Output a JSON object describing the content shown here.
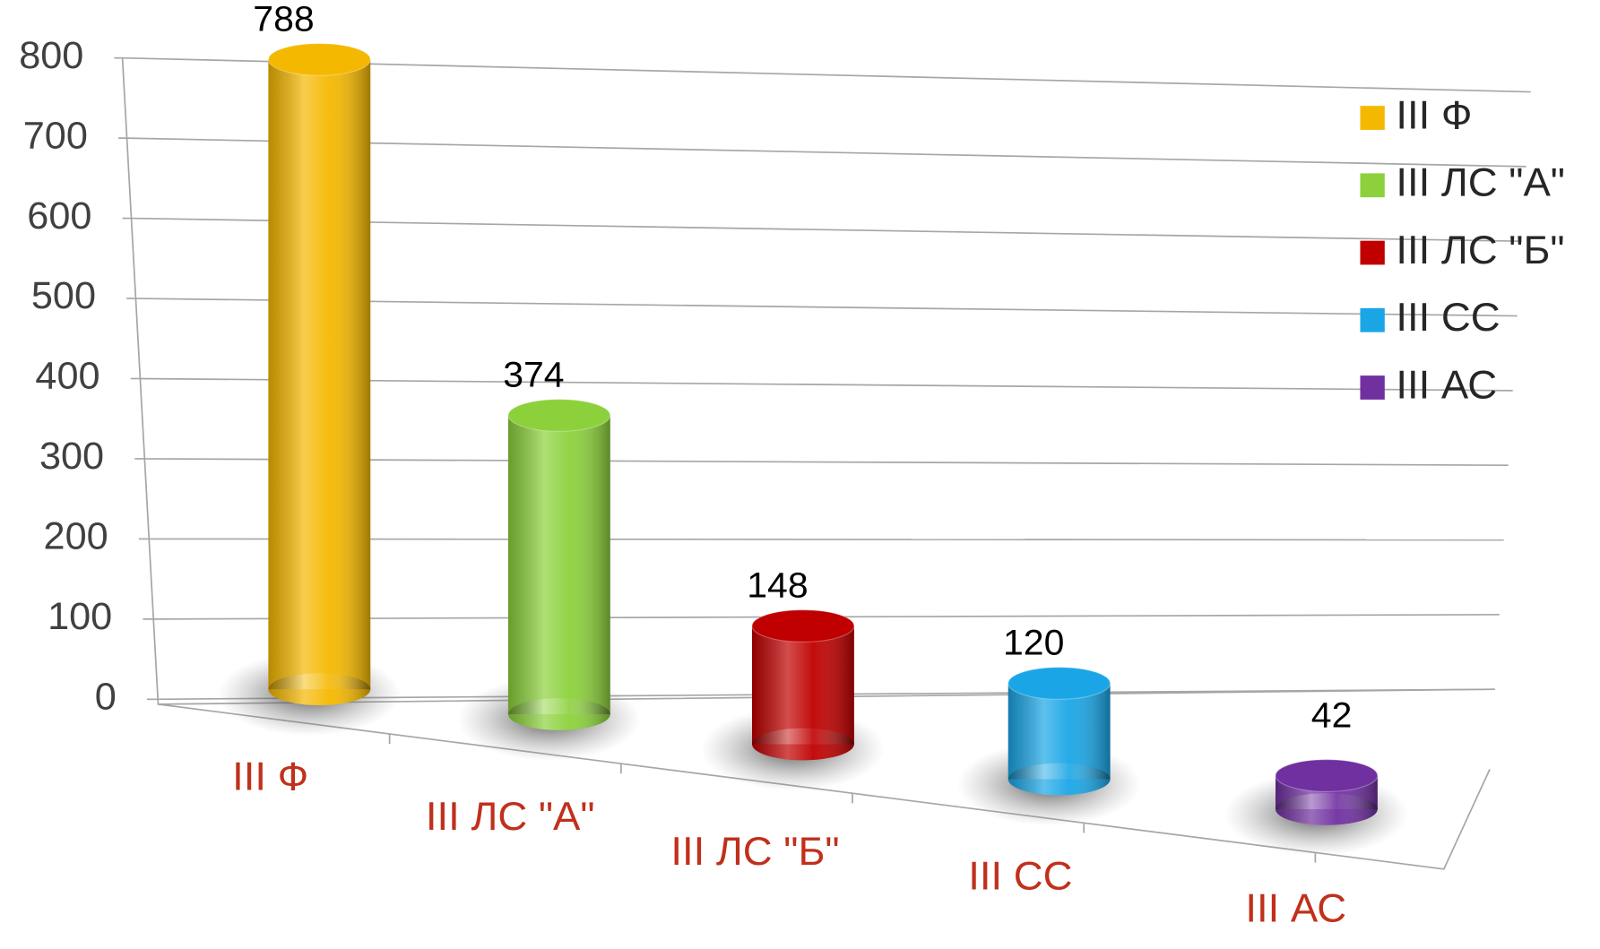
{
  "chart_data": {
    "type": "bar",
    "categories": [
      "III Ф",
      "III ЛС \"А\"",
      "III ЛС \"Б\"",
      "III СС",
      "III АС"
    ],
    "values": [
      788,
      374,
      148,
      120,
      42
    ],
    "colors": [
      "#f5b800",
      "#8cd13c",
      "#c00000",
      "#1aa6e6",
      "#7030a0"
    ],
    "ylim": [
      0,
      800
    ],
    "yticks": [
      0,
      100,
      200,
      300,
      400,
      500,
      600,
      700,
      800
    ],
    "grid": true,
    "legend": "right"
  }
}
